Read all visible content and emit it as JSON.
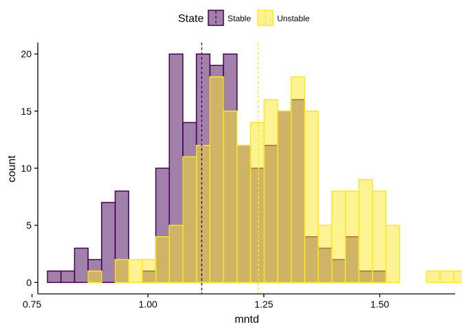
{
  "chart_data": {
    "type": "histogram",
    "xlabel": "mntd",
    "ylabel": "count",
    "xlim": [
      0.7625,
      1.6625
    ],
    "ylim": [
      -1,
      21
    ],
    "bin_width": 0.0292,
    "bin_start": 0.7833,
    "x_ticks": [
      0.75,
      1.0,
      1.25,
      1.5
    ],
    "x_tick_labels": [
      "0.75",
      "1.00",
      "1.25",
      "1.50"
    ],
    "y_ticks": [
      0,
      5,
      10,
      15,
      20
    ],
    "y_tick_labels": [
      "0",
      "5",
      "10",
      "15",
      "20"
    ],
    "legend": {
      "title": "State",
      "position": "top"
    },
    "series": [
      {
        "name": "Stable",
        "fill": "#440154",
        "fill_opacity": 0.5,
        "stroke": "#440154",
        "mean": 1.116,
        "values": [
          1,
          1,
          3,
          2,
          7,
          8,
          0,
          1,
          10,
          20,
          14,
          20,
          19,
          20,
          12,
          10,
          12,
          15,
          16,
          4,
          3,
          2,
          4,
          1,
          1,
          0,
          0,
          0,
          0,
          0
        ]
      },
      {
        "name": "Unstable",
        "fill": "#FDE725",
        "fill_opacity": 0.5,
        "stroke": "#FDE725",
        "mean": 1.238,
        "values": [
          0,
          0,
          0,
          1,
          0,
          2,
          2,
          2,
          4,
          5,
          11,
          12,
          18,
          15,
          12,
          14,
          16,
          15,
          18,
          15,
          5,
          8,
          8,
          9,
          8,
          5,
          0,
          0,
          1,
          1,
          1
        ]
      }
    ]
  }
}
